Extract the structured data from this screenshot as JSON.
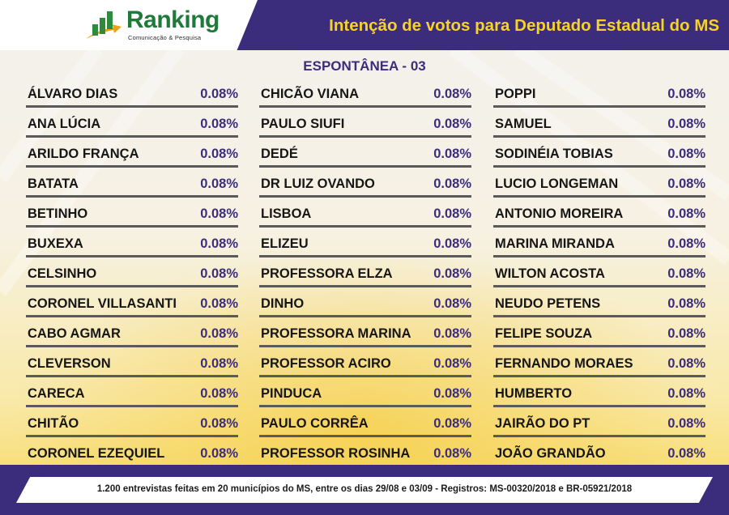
{
  "colors": {
    "header_bg": "#3b2d7c",
    "title_yellow": "#f6d22a",
    "logo_green": "#1f7a3a",
    "value_purple": "#3b2d7c"
  },
  "logo": {
    "icon": "bar-chart-arrow-icon",
    "name": "Ranking",
    "tagline": "Comunicação & Pesquisa"
  },
  "header": {
    "title": "Intenção de votos para Deputado Estadual do MS"
  },
  "chart_data": {
    "type": "table",
    "title": "Intenção de votos para Deputado Estadual do MS",
    "subtitle": "ESPONTÂNEA - 03",
    "unit": "%",
    "columns": [
      [
        {
          "name": "ÁLVARO DIAS",
          "value": "0.08%"
        },
        {
          "name": "ANA LÚCIA",
          "value": "0.08%"
        },
        {
          "name": "ARILDO FRANÇA",
          "value": "0.08%"
        },
        {
          "name": "BATATA",
          "value": "0.08%"
        },
        {
          "name": "BETINHO",
          "value": "0.08%"
        },
        {
          "name": "BUXEXA",
          "value": "0.08%"
        },
        {
          "name": "CELSINHO",
          "value": "0.08%"
        },
        {
          "name": "CORONEL VILLASANTI",
          "value": "0.08%"
        },
        {
          "name": "CABO AGMAR",
          "value": "0.08%"
        },
        {
          "name": "CLEVERSON",
          "value": "0.08%"
        },
        {
          "name": "CARECA",
          "value": "0.08%"
        },
        {
          "name": "CHITÃO",
          "value": "0.08%"
        },
        {
          "name": "CORONEL EZEQUIEL",
          "value": "0.08%"
        }
      ],
      [
        {
          "name": "CHICÃO VIANA",
          "value": "0.08%"
        },
        {
          "name": "PAULO SIUFI",
          "value": "0.08%"
        },
        {
          "name": "DEDÉ",
          "value": "0.08%"
        },
        {
          "name": "DR LUIZ OVANDO",
          "value": "0.08%"
        },
        {
          "name": "LISBOA",
          "value": "0.08%"
        },
        {
          "name": "ELIZEU",
          "value": "0.08%"
        },
        {
          "name": "PROFESSORA ELZA",
          "value": "0.08%"
        },
        {
          "name": "DINHO",
          "value": "0.08%"
        },
        {
          "name": "PROFESSORA MARINA",
          "value": "0.08%"
        },
        {
          "name": "PROFESSOR ACIRO",
          "value": "0.08%"
        },
        {
          "name": "PINDUCA",
          "value": "0.08%"
        },
        {
          "name": "PAULO CORRÊA",
          "value": "0.08%"
        },
        {
          "name": "PROFESSOR ROSINHA",
          "value": "0.08%"
        }
      ],
      [
        {
          "name": "POPPI",
          "value": "0.08%"
        },
        {
          "name": "SAMUEL",
          "value": "0.08%"
        },
        {
          "name": "SODINÉIA TOBIAS",
          "value": "0.08%"
        },
        {
          "name": "LUCIO LONGEMAN",
          "value": "0.08%"
        },
        {
          "name": "ANTONIO MOREIRA",
          "value": "0.08%"
        },
        {
          "name": "MARINA MIRANDA",
          "value": "0.08%"
        },
        {
          "name": "WILTON ACOSTA",
          "value": "0.08%"
        },
        {
          "name": "NEUDO PETENS",
          "value": "0.08%"
        },
        {
          "name": "FELIPE SOUZA",
          "value": "0.08%"
        },
        {
          "name": "FERNANDO MORAES",
          "value": "0.08%"
        },
        {
          "name": "HUMBERTO",
          "value": "0.08%"
        },
        {
          "name": "JAIRÃO DO PT",
          "value": "0.08%"
        },
        {
          "name": "JOÃO GRANDÃO",
          "value": "0.08%"
        }
      ]
    ]
  },
  "footer": {
    "text": "1.200 entrevistas feitas em 20 municípios do MS, entre os dias 29/08 e 03/09 - Registros: MS-00320/2018 e BR-05921/2018"
  }
}
